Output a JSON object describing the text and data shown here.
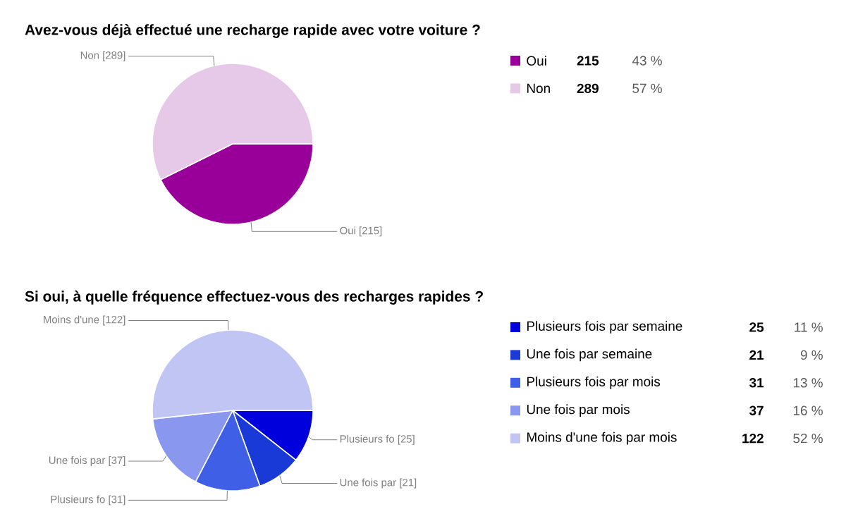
{
  "chart_data": [
    {
      "type": "pie",
      "title": "Avez-vous déjà effectué une recharge rapide avec votre voiture ?",
      "categories": [
        "Oui",
        "Non"
      ],
      "values": [
        215,
        289
      ],
      "colors": [
        "#990099",
        "#e6c8e8"
      ],
      "value_labels": [
        "215",
        "289"
      ],
      "legend": "right",
      "annotations": [
        "Oui [215]",
        "Non [289]",
        "43 %",
        "57 %"
      ]
    },
    {
      "type": "pie",
      "title": "Si oui, à quelle fréquence effectuez-vous des recharges rapides ?",
      "categories": [
        "Plusieurs fois par semaine",
        "Une fois par semaine",
        "Plusieurs fois par mois",
        "Une fois par mois",
        "Moins d'une fois par mois"
      ],
      "values": [
        25,
        21,
        31,
        37,
        122
      ],
      "colors": [
        "#0000dd",
        "#1a3ad8",
        "#3e5fe6",
        "#8a97ee",
        "#c0c5f4"
      ],
      "value_labels": [
        "25",
        "21",
        "31",
        "37",
        "122"
      ],
      "legend": "right",
      "annotations": [
        "Plusieurs fo [25]",
        "Une fois par [21]",
        "Plusieurs fo [31]",
        "Une fois par [37]",
        "Moins d'une [122]",
        "11 %",
        "9 %",
        "13 %",
        "16 %",
        "52 %"
      ]
    }
  ]
}
